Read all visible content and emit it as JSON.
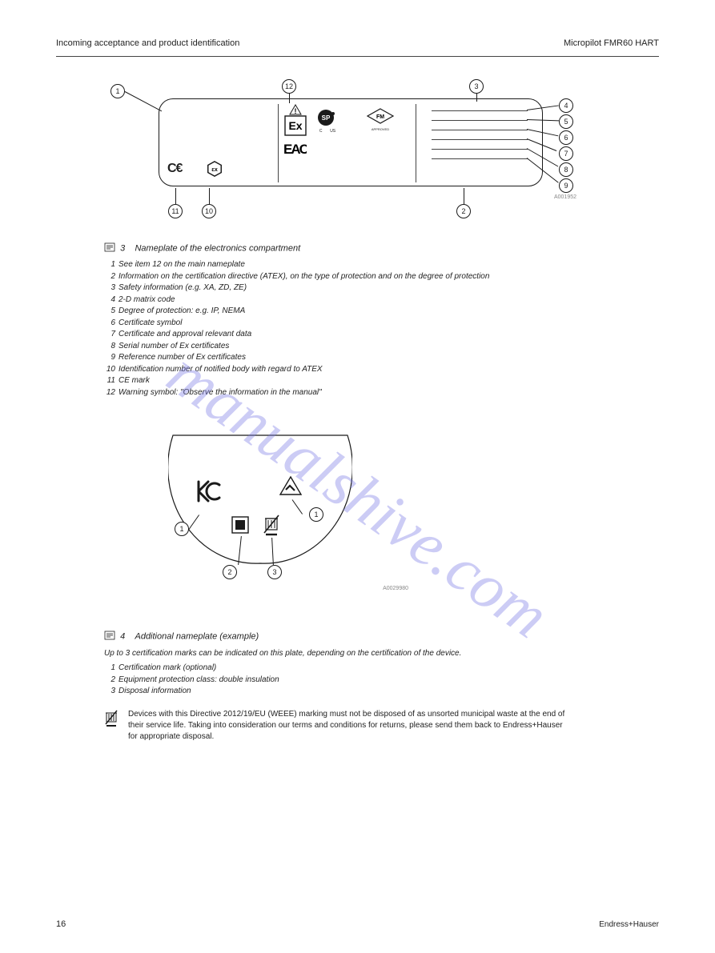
{
  "header": {
    "title_left": "Incoming acceptance and product identification",
    "title_right": "Micropilot FMR60 HART"
  },
  "watermark": "manualshive.com",
  "figure_a": {
    "code": "A001952",
    "caption_num": "3",
    "caption_text": "Nameplate of the electronics compartment",
    "legend": [
      {
        "n": "1",
        "t": "See item 12 on the main nameplate"
      },
      {
        "n": "2",
        "t": "Information on the certification directive (ATEX), on the type of protection and on the degree of protection"
      },
      {
        "n": "3",
        "t": "Safety information (e.g. XA, ZD, ZE)"
      },
      {
        "n": "4",
        "t": "2-D matrix code"
      },
      {
        "n": "5",
        "t": "Degree of protection: e.g. IP, NEMA"
      },
      {
        "n": "6",
        "t": "Certificate symbol"
      },
      {
        "n": "7",
        "t": "Certificate and approval relevant data"
      },
      {
        "n": "8",
        "t": "Serial number of Ex certificates"
      },
      {
        "n": "9",
        "t": "Reference number of Ex certificates"
      },
      {
        "n": "10",
        "t": "Identification number of notified body with regard to ATEX"
      },
      {
        "n": "11",
        "t": "CE mark"
      },
      {
        "n": "12",
        "t": "Warning symbol: \"Observe the information in the manual\""
      }
    ]
  },
  "figure_b": {
    "code": "A0029980",
    "caption_num": "4",
    "caption_text": "Additional nameplate (example)",
    "legend_intro_a": "Up to 3 certification marks can be indicated on this plate, depending on the certification of the device.",
    "legend": [
      {
        "n": "1",
        "t": "Certification mark (optional)"
      },
      {
        "n": "2",
        "t": "Equipment protection class: double insulation"
      },
      {
        "n": "3",
        "t": "Disposal information"
      }
    ],
    "ref_note": "Devices with this Directive 2012/19/EU (WEEE) marking must not be disposed of as unsorted municipal waste at the end of their service life. Taking into consideration our terms and conditions for returns, please send them back to Endress+Hauser for appropriate disposal."
  },
  "footer": {
    "page": "16",
    "right": "Endress+Hauser"
  },
  "colors": {
    "line": "#1a1a1a",
    "text": "#222222",
    "watermark": "rgba(120,120,230,0.38)"
  }
}
